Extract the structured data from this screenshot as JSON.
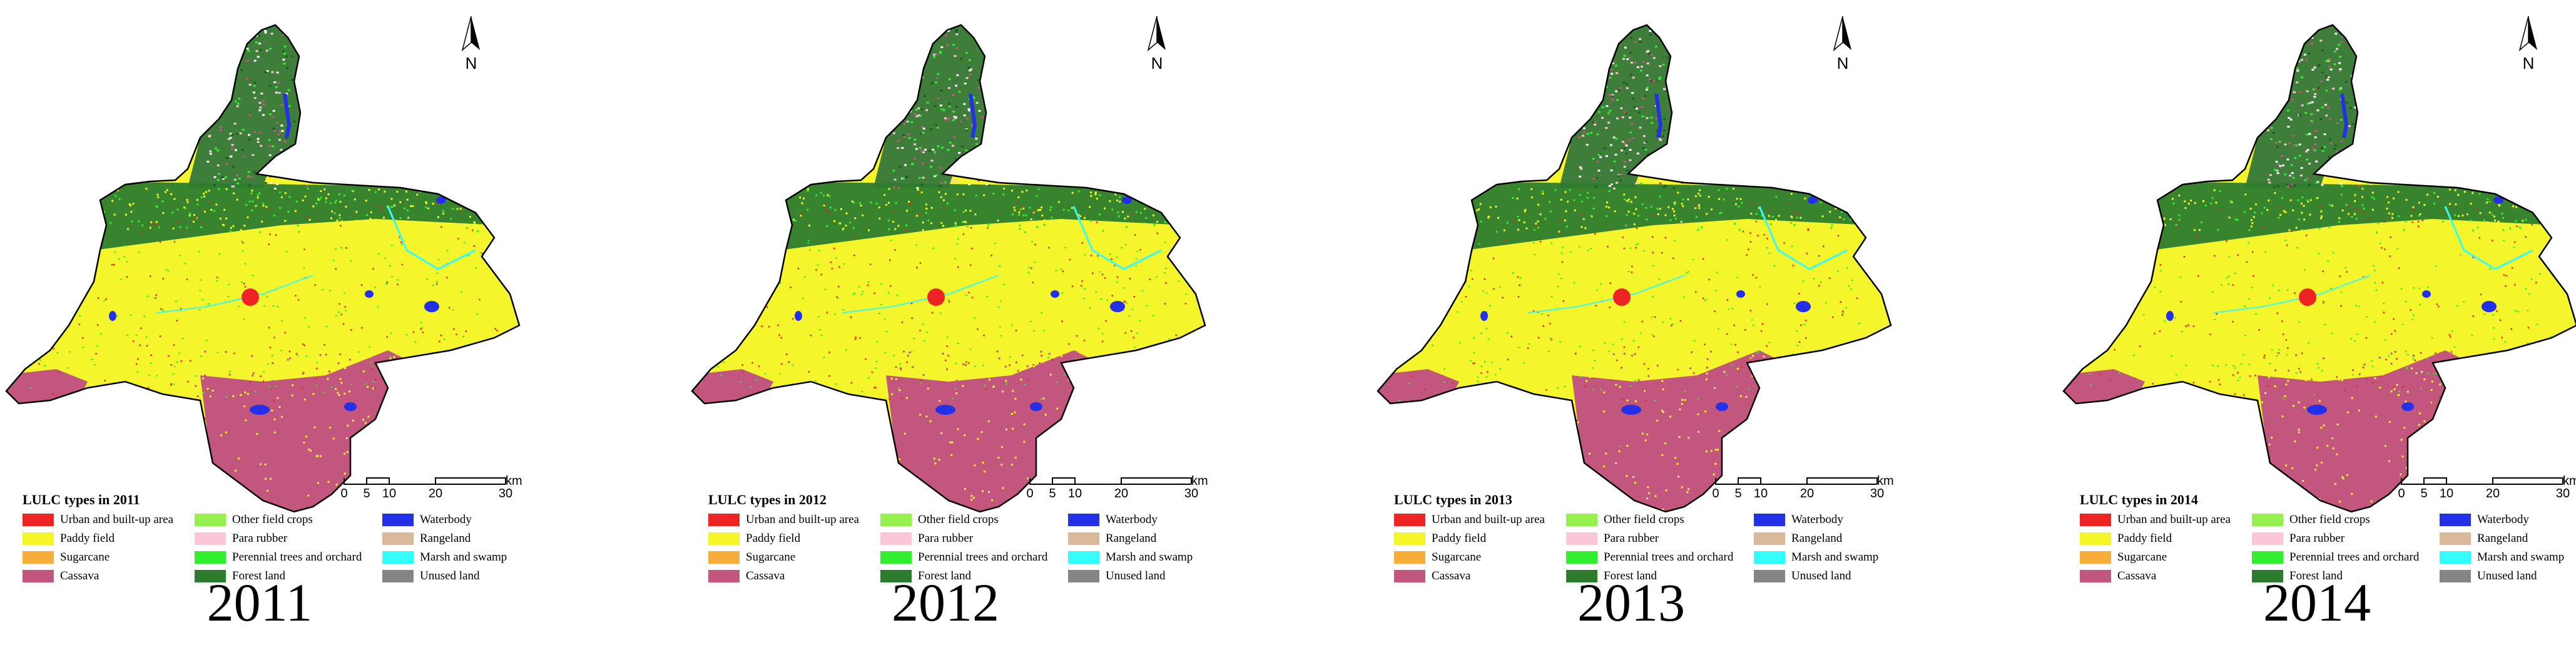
{
  "panels": [
    {
      "legend_title": "LULC types in 2011",
      "year": "2011"
    },
    {
      "legend_title": "LULC types in 2012",
      "year": "2012"
    },
    {
      "legend_title": "LULC types in 2013",
      "year": "2013"
    },
    {
      "legend_title": "LULC types in 2014",
      "year": "2014"
    }
  ],
  "north_label": "N",
  "scale": {
    "unit": "km",
    "ticks": [
      "0",
      "5",
      "10",
      "20",
      "30"
    ]
  },
  "legend_items": [
    {
      "label": "Urban and built-up area",
      "color": "#ee2424"
    },
    {
      "label": "Other field crops",
      "color": "#96f050"
    },
    {
      "label": "Waterbody",
      "color": "#2330e8"
    },
    {
      "label": "Paddy field",
      "color": "#f5f52b"
    },
    {
      "label": "Para rubber",
      "color": "#fbc6d5"
    },
    {
      "label": "Rangeland",
      "color": "#d9b99a"
    },
    {
      "label": "Sugarcane",
      "color": "#f7ad3a"
    },
    {
      "label": "Perennial trees and orchard",
      "color": "#30ee30"
    },
    {
      "label": "Marsh and swamp",
      "color": "#33ffff"
    },
    {
      "label": "Cassava",
      "color": "#c2567f"
    },
    {
      "label": "Forest land",
      "color": "#2d7c2d"
    },
    {
      "label": "Unused land",
      "color": "#858585"
    }
  ]
}
